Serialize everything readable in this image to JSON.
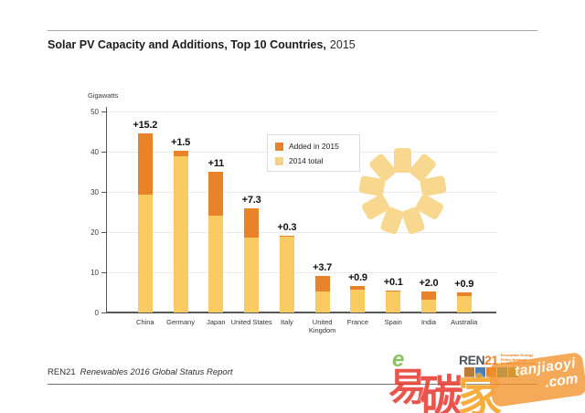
{
  "title": {
    "main": "Solar PV Capacity and Additions, Top 10 Countries,",
    "year": "2015"
  },
  "y_axis": {
    "unit_label": "Gigawatts",
    "ticks": [
      0,
      10,
      20,
      30,
      40,
      50
    ]
  },
  "legend": [
    {
      "label": "Added in 2015",
      "color": "#e8832a"
    },
    {
      "label": "2014 total",
      "color": "#f4d28e"
    }
  ],
  "chart_data": {
    "type": "bar",
    "stacked": true,
    "title": "Solar PV Capacity and Additions, Top 10 Countries, 2015",
    "ylabel": "Gigawatts",
    "ylim": [
      0,
      50
    ],
    "grid": true,
    "legend_position": "upper-center",
    "categories": [
      "China",
      "Germany",
      "Japan",
      "United States",
      "Italy",
      "United Kingdom",
      "France",
      "Spain",
      "India",
      "Australia"
    ],
    "series": [
      {
        "name": "2014 total",
        "color": "#facb63",
        "values": [
          29.3,
          38.8,
          24.0,
          18.6,
          18.8,
          5.3,
          5.7,
          5.4,
          3.2,
          4.1
        ]
      },
      {
        "name": "Added in 2015",
        "color": "#e8832a",
        "values": [
          15.2,
          1.5,
          11,
          7.3,
          0.3,
          3.7,
          0.9,
          0.1,
          2.0,
          0.9
        ]
      }
    ],
    "bar_labels": [
      "+15.2",
      "+1.5",
      "+11",
      "+7.3",
      "+0.3",
      "+3.7",
      "+0.9",
      "+0.1",
      "+2.0",
      "+0.9"
    ]
  },
  "sun": {
    "color": "#f8d88f",
    "ray_count": 9
  },
  "footer": {
    "source_org": "REN21",
    "source_title": "Renewables 2016 Global Status Report"
  },
  "ren21_logo": {
    "text_main": "REN",
    "text_number": "21",
    "tagline_lines": [
      "Renewable Energy",
      "Policy Network",
      "for the 21st Century"
    ],
    "tile_colors": [
      "#bf7a33",
      "#4a7fb5",
      "#e8832a",
      "#35a79f",
      "#79b347"
    ]
  },
  "watermark": {
    "char_1": "易",
    "char_2": "碳",
    "char_3": "家",
    "accent_letter": "e",
    "latin": "tanjiaoyi",
    "tld": ".com"
  }
}
